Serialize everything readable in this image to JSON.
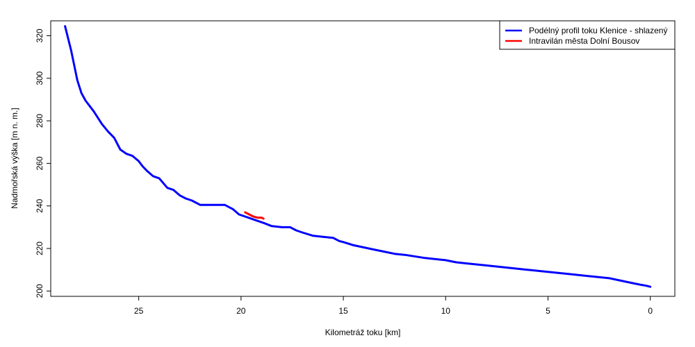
{
  "chart_data": {
    "type": "line",
    "title": "",
    "xlabel": "Kilometráž toku [km]",
    "ylabel": "Nadmořská výška [m n. m.]",
    "x_reversed": true,
    "xlim": [
      29.3,
      -1.2
    ],
    "ylim": [
      197.5,
      327
    ],
    "x_ticks": [
      25,
      20,
      15,
      10,
      5,
      0
    ],
    "y_ticks": [
      200,
      220,
      240,
      260,
      280,
      300,
      320
    ],
    "grid": false,
    "legend_position": "top-right",
    "series": [
      {
        "name": "Podélný profil toku Klenice - shlazený",
        "color": "#0000ff",
        "x": [
          28.6,
          28.3,
          28.0,
          27.8,
          27.6,
          27.2,
          26.8,
          26.5,
          26.2,
          25.9,
          25.6,
          25.3,
          25.0,
          24.8,
          24.6,
          24.3,
          24.0,
          23.6,
          23.3,
          23.0,
          22.7,
          22.4,
          22.0,
          21.6,
          21.2,
          20.8,
          20.4,
          20.1,
          19.8,
          19.5,
          19.2,
          18.9,
          18.5,
          18.0,
          17.6,
          17.3,
          17.0,
          16.5,
          16.0,
          15.5,
          15.2,
          15.0,
          14.5,
          14.0,
          13.5,
          13.0,
          12.5,
          12.0,
          11.0,
          10.0,
          9.5,
          9.0,
          8.5,
          8.0,
          7.0,
          6.0,
          5.0,
          4.5,
          4.0,
          3.0,
          2.0,
          1.5,
          1.0,
          0.5,
          0.2,
          0.0
        ],
        "y": [
          324.5,
          313.0,
          299.0,
          293.0,
          289.5,
          284.5,
          278.5,
          275.0,
          272.0,
          266.5,
          264.5,
          263.5,
          261.0,
          258.5,
          256.5,
          254.0,
          253.0,
          248.5,
          247.5,
          245.0,
          243.5,
          242.5,
          240.5,
          240.5,
          240.5,
          240.5,
          238.5,
          236.0,
          235.0,
          234.0,
          233.0,
          232.0,
          230.5,
          230.0,
          230.0,
          228.5,
          227.5,
          226.0,
          225.5,
          225.0,
          223.5,
          223.0,
          221.5,
          220.5,
          219.5,
          218.5,
          217.5,
          217.0,
          215.5,
          214.5,
          213.5,
          213.0,
          212.5,
          212.0,
          211.0,
          210.0,
          209.0,
          208.5,
          208.0,
          207.0,
          206.0,
          205.0,
          204.0,
          203.0,
          202.5,
          202.0
        ]
      },
      {
        "name": "Intravilán města Dolní Bousov",
        "color": "#ff0000",
        "x": [
          19.8,
          19.6,
          19.4,
          19.2,
          19.0,
          18.9
        ],
        "y": [
          237.0,
          236.0,
          235.0,
          234.5,
          234.5,
          234.0
        ]
      }
    ]
  }
}
